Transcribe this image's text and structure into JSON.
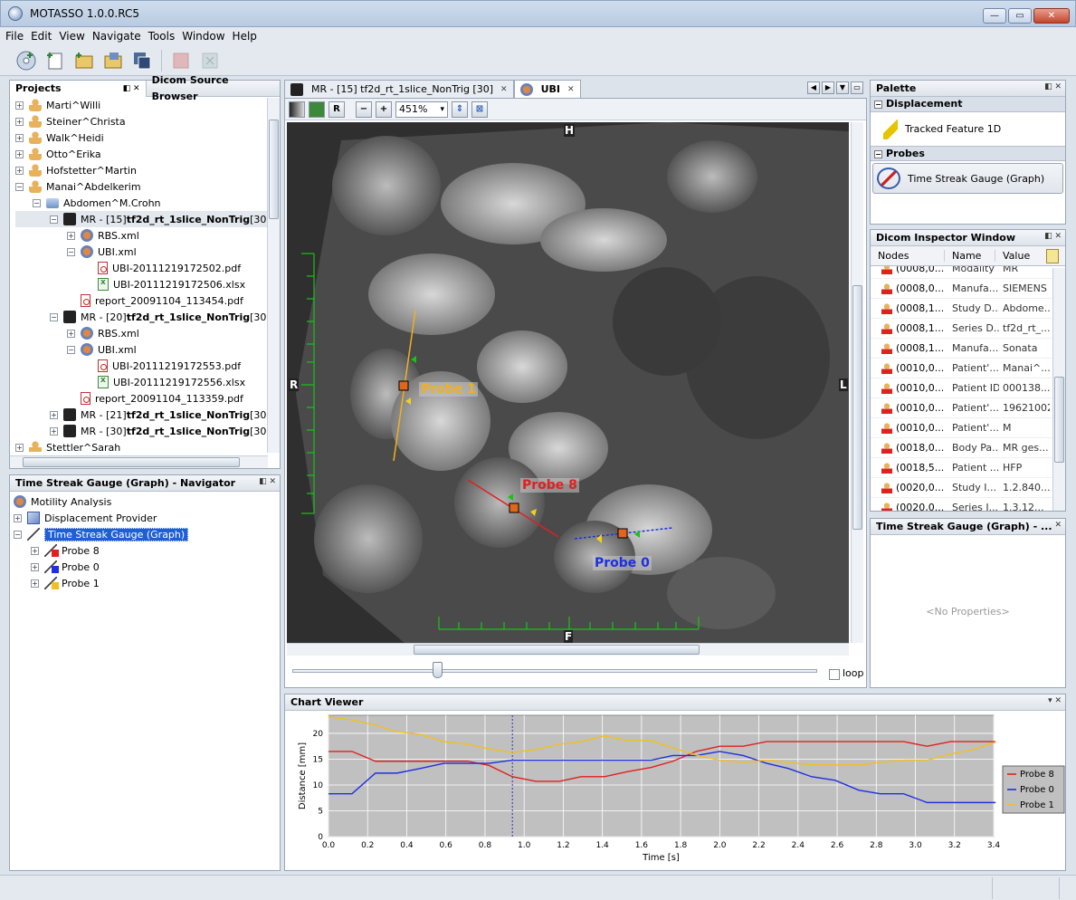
{
  "window": {
    "title": "MOTASSO 1.0.0.RC5",
    "controls": [
      "—",
      "▭",
      "✕"
    ]
  },
  "menu": [
    "File",
    "Edit",
    "View",
    "Navigate",
    "Tools",
    "Window",
    "Help"
  ],
  "projects_panel": {
    "tabs": [
      "Projects",
      "Dicom Source Browser"
    ],
    "items": [
      {
        "label": "Marti^Willi",
        "level": 0,
        "icon": "user-icon",
        "expander": "+"
      },
      {
        "label": "Steiner^Christa",
        "level": 0,
        "icon": "user-icon",
        "expander": "+"
      },
      {
        "label": "Walk^Heidi",
        "level": 0,
        "icon": "user-icon",
        "expander": "+"
      },
      {
        "label": "Otto^Erika",
        "level": 0,
        "icon": "user-icon",
        "expander": "+"
      },
      {
        "label": "Hofstetter^Martin",
        "level": 0,
        "icon": "user-icon",
        "expander": "+"
      },
      {
        "label": "Manai^Abdelkerim",
        "level": 0,
        "icon": "user-icon",
        "expander": "−"
      },
      {
        "label": "Abdomen^M.Crohn",
        "level": 1,
        "icon": "folder-icon",
        "expander": "−"
      },
      {
        "label": "MR - [15] ",
        "bold": "tf2d_rt_1slice_NonTrig",
        "suffix": " [30",
        "level": 2,
        "icon": "mr-icon",
        "expander": "−",
        "highlight": true
      },
      {
        "label": "RBS.xml",
        "level": 3,
        "icon": "xml-icon",
        "expander": "+"
      },
      {
        "label": "UBI.xml",
        "level": 3,
        "icon": "xml-icon",
        "expander": "−"
      },
      {
        "label": "UBI-20111219172502.pdf",
        "level": 4,
        "icon": "pdf-icon",
        "expander": ""
      },
      {
        "label": "UBI-20111219172506.xlsx",
        "level": 4,
        "icon": "xls-icon",
        "expander": ""
      },
      {
        "label": "report_20091104_113454.pdf",
        "level": 3,
        "icon": "pdf-icon",
        "expander": ""
      },
      {
        "label": "MR - [20] ",
        "bold": "tf2d_rt_1slice_NonTrig",
        "suffix": " [30",
        "level": 2,
        "icon": "mr-icon",
        "expander": "−"
      },
      {
        "label": "RBS.xml",
        "level": 3,
        "icon": "xml-icon",
        "expander": "+"
      },
      {
        "label": "UBI.xml",
        "level": 3,
        "icon": "xml-icon",
        "expander": "−"
      },
      {
        "label": "UBI-20111219172553.pdf",
        "level": 4,
        "icon": "pdf-icon",
        "expander": ""
      },
      {
        "label": "UBI-20111219172556.xlsx",
        "level": 4,
        "icon": "xls-icon",
        "expander": ""
      },
      {
        "label": "report_20091104_113359.pdf",
        "level": 3,
        "icon": "pdf-icon",
        "expander": ""
      },
      {
        "label": "MR - [21] ",
        "bold": "tf2d_rt_1slice_NonTrig",
        "suffix": " [30",
        "level": 2,
        "icon": "mr-icon",
        "expander": "+"
      },
      {
        "label": "MR - [30] ",
        "bold": "tf2d_rt_1slice_NonTrig",
        "suffix": " [30",
        "level": 2,
        "icon": "mr-icon",
        "expander": "+"
      },
      {
        "label": "Stettler^Sarah",
        "level": 0,
        "icon": "user-icon",
        "expander": "+"
      }
    ]
  },
  "navigator_panel": {
    "title": "Time Streak Gauge (Graph) - Navigator",
    "items": [
      {
        "label": "Motility Analysis",
        "level": 0,
        "expander": ""
      },
      {
        "label": "Displacement Provider",
        "level": 0,
        "expander": "+"
      },
      {
        "label": "Time Streak Gauge (Graph)",
        "level": 0,
        "expander": "−",
        "selected": true
      },
      {
        "label": "Probe 8",
        "level": 1,
        "expander": "+",
        "color": "#e02020"
      },
      {
        "label": "Probe 0",
        "level": 1,
        "expander": "+",
        "color": "#1f2fe0"
      },
      {
        "label": "Probe 1",
        "level": 1,
        "expander": "+",
        "color": "#f0c020"
      }
    ]
  },
  "editor": {
    "tabs": [
      {
        "label": "MR - [15] tf2d_rt_1slice_NonTrig [30]",
        "active": false
      },
      {
        "label": "UBI",
        "active": true
      }
    ],
    "zoom": "451%",
    "tool_labels": [
      "R"
    ],
    "orientation": {
      "top": "H",
      "bottom": "F",
      "left": "R",
      "right": "L"
    },
    "probes": [
      {
        "label": "Probe 1",
        "color": "#f0b020"
      },
      {
        "label": "Probe 8",
        "color": "#e02020"
      },
      {
        "label": "Probe 0",
        "color": "#1f2fe0"
      }
    ],
    "loop_label": "loop",
    "loop_checked": false
  },
  "palette": {
    "title": "Palette",
    "sections": [
      {
        "name": "Displacement",
        "items": [
          "Tracked Feature 1D"
        ]
      },
      {
        "name": "Probes",
        "items": [
          "Time Streak Gauge (Graph)"
        ]
      }
    ]
  },
  "dicom_inspector": {
    "title": "Dicom Inspector Window",
    "columns": [
      "Nodes",
      "Name",
      "Value"
    ],
    "rows": [
      [
        "(0008,0...",
        "Modality",
        "MR"
      ],
      [
        "(0008,0...",
        "Manufa...",
        "SIEMENS"
      ],
      [
        "(0008,1...",
        "Study D...",
        "Abdome..."
      ],
      [
        "(0008,1...",
        "Series D...",
        "tf2d_rt_..."
      ],
      [
        "(0008,1...",
        "Manufa...",
        "Sonata"
      ],
      [
        "(0010,0...",
        "Patient'...",
        "Manai^..."
      ],
      [
        "(0010,0...",
        "Patient ID",
        "000138..."
      ],
      [
        "(0010,0...",
        "Patient'...",
        "19621002"
      ],
      [
        "(0010,0...",
        "Patient'...",
        "M"
      ],
      [
        "(0018,0...",
        "Body Pa...",
        "MR ges..."
      ],
      [
        "(0018,5...",
        "Patient ...",
        "HFP"
      ],
      [
        "(0020,0...",
        "Study I...",
        "1.2.840...."
      ],
      [
        "(0020,0...",
        "Series I...",
        "1.3.12..."
      ]
    ]
  },
  "properties": {
    "title": "Time Streak Gauge (Graph) - ...",
    "empty": "<No Properties>"
  },
  "chart_panel": {
    "title": "Chart Viewer"
  },
  "chart_data": {
    "type": "line",
    "title": "",
    "xlabel": "Time [s]",
    "ylabel": "Distance [mm]",
    "xlim": [
      0.0,
      3.4
    ],
    "ylim": [
      0,
      23.5
    ],
    "xticks": [
      "0.0",
      "0.2",
      "0.4",
      "0.6",
      "0.8",
      "1.0",
      "1.2",
      "1.4",
      "1.6",
      "1.8",
      "2.0",
      "2.2",
      "2.4",
      "2.6",
      "2.8",
      "3.0",
      "3.2",
      "3.4"
    ],
    "yticks": [
      "0",
      "5",
      "10",
      "15",
      "20"
    ],
    "grid": true,
    "legend": "right",
    "cursor_x": 0.94,
    "x": [
      0.0,
      0.12,
      0.24,
      0.35,
      0.47,
      0.59,
      0.71,
      0.82,
      0.94,
      1.06,
      1.18,
      1.29,
      1.41,
      1.53,
      1.65,
      1.76,
      1.88,
      2.0,
      2.12,
      2.24,
      2.35,
      2.47,
      2.59,
      2.71,
      2.82,
      2.94,
      3.06,
      3.18,
      3.29,
      3.41
    ],
    "series": [
      {
        "name": "Probe 8",
        "color": "#e02020",
        "values": [
          16.5,
          16.5,
          14.6,
          14.6,
          14.6,
          14.6,
          14.6,
          13.8,
          11.6,
          10.7,
          10.7,
          11.6,
          11.6,
          12.6,
          13.4,
          14.6,
          16.5,
          17.5,
          17.5,
          18.4,
          18.4,
          18.4,
          18.4,
          18.4,
          18.4,
          18.4,
          17.5,
          18.4,
          18.4,
          18.4
        ]
      },
      {
        "name": "Probe 0",
        "color": "#1f2fe0",
        "values": [
          8.3,
          8.3,
          12.3,
          12.3,
          13.2,
          14.2,
          14.2,
          14.2,
          14.8,
          14.8,
          14.8,
          14.8,
          14.8,
          14.8,
          14.8,
          15.7,
          15.7,
          16.5,
          15.7,
          14.2,
          13.2,
          11.6,
          10.9,
          9.0,
          8.3,
          8.3,
          6.6,
          6.6,
          6.6,
          6.6
        ]
      },
      {
        "name": "Probe 1",
        "color": "#f0c020",
        "values": [
          23.2,
          22.6,
          21.6,
          20.3,
          19.8,
          18.4,
          17.9,
          17.0,
          16.3,
          16.9,
          17.9,
          18.4,
          19.5,
          18.6,
          18.6,
          17.2,
          15.8,
          14.8,
          14.4,
          14.8,
          14.4,
          13.9,
          13.9,
          13.9,
          14.4,
          14.8,
          14.8,
          16.0,
          16.8,
          18.3
        ]
      }
    ]
  }
}
